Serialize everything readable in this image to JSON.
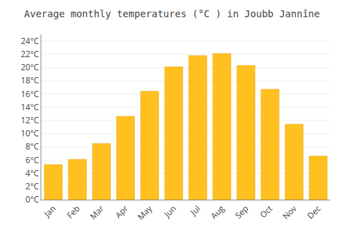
{
  "chart_data": {
    "type": "bar",
    "title": "Average monthly temperatures (°C ) in Joubb Jannîne",
    "categories": [
      "Jan",
      "Feb",
      "Mar",
      "Apr",
      "May",
      "Jun",
      "Jul",
      "Aug",
      "Sep",
      "Oct",
      "Nov",
      "Dec"
    ],
    "values": [
      5.3,
      6.1,
      8.5,
      12.6,
      16.4,
      20.1,
      21.8,
      22.1,
      20.3,
      16.7,
      11.4,
      6.6
    ],
    "color": "#FFC020",
    "ylim": [
      0,
      25
    ],
    "yticks": [
      {
        "value": 0,
        "label": "0°C"
      },
      {
        "value": 2,
        "label": "2°C"
      },
      {
        "value": 4,
        "label": "4°C"
      },
      {
        "value": 6,
        "label": "6°C"
      },
      {
        "value": 8,
        "label": "8°C"
      },
      {
        "value": 10,
        "label": "10°C"
      },
      {
        "value": 12,
        "label": "12°C"
      },
      {
        "value": 14,
        "label": "14°C"
      },
      {
        "value": 16,
        "label": "16°C"
      },
      {
        "value": 18,
        "label": "18°C"
      },
      {
        "value": 20,
        "label": "20°C"
      },
      {
        "value": 22,
        "label": "22°C"
      },
      {
        "value": 24,
        "label": "24°C"
      }
    ],
    "grid": true
  }
}
